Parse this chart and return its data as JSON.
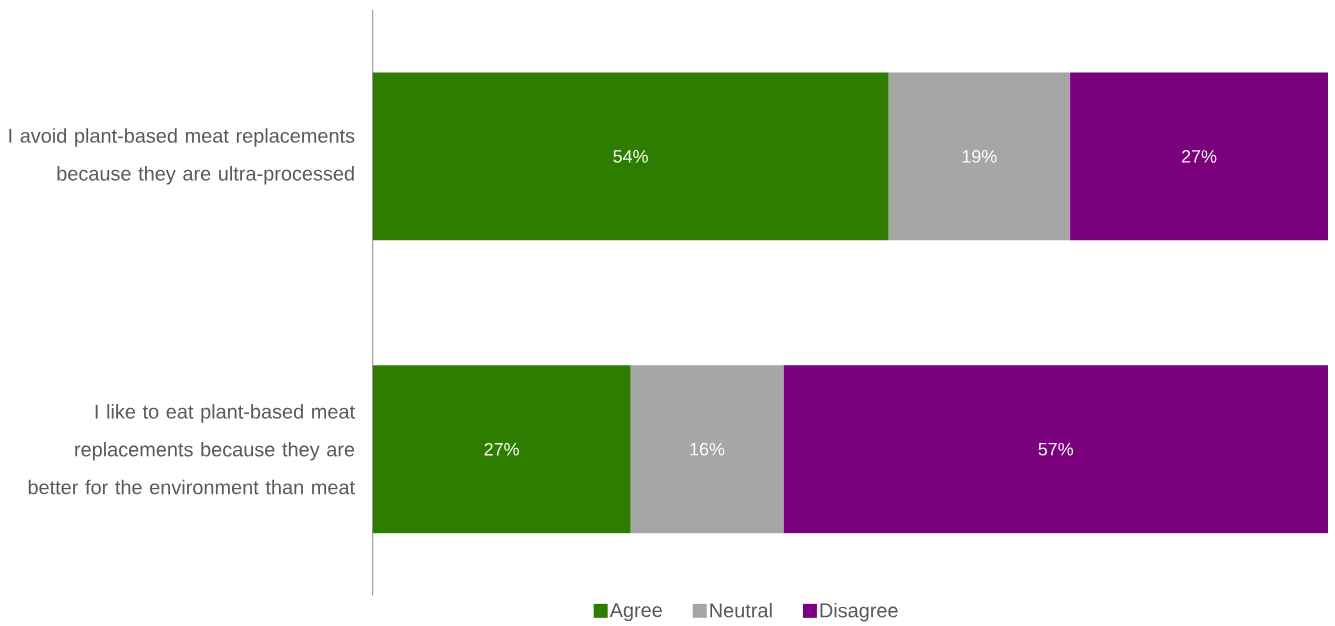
{
  "chart_data": {
    "type": "bar",
    "orientation": "horizontal",
    "stacked": true,
    "categories": [
      "I avoid plant-based meat replacements because they are ultra-processed",
      "I like to eat plant-based meat replacements because they are better for the environment than meat"
    ],
    "series": [
      {
        "name": "Agree",
        "color": "#2e7d00",
        "values": [
          54,
          27
        ],
        "value_labels": [
          "54%",
          "27%"
        ]
      },
      {
        "name": "Neutral",
        "color": "#a6a6a6",
        "values": [
          19,
          16
        ],
        "value_labels": [
          "19%",
          "16%"
        ]
      },
      {
        "name": "Disagree",
        "color": "#7a007e",
        "values": [
          27,
          57
        ],
        "value_labels": [
          "27%",
          "57%"
        ]
      }
    ],
    "xlim": [
      0,
      100
    ],
    "legend": "bottom",
    "tick_labels": "y"
  }
}
